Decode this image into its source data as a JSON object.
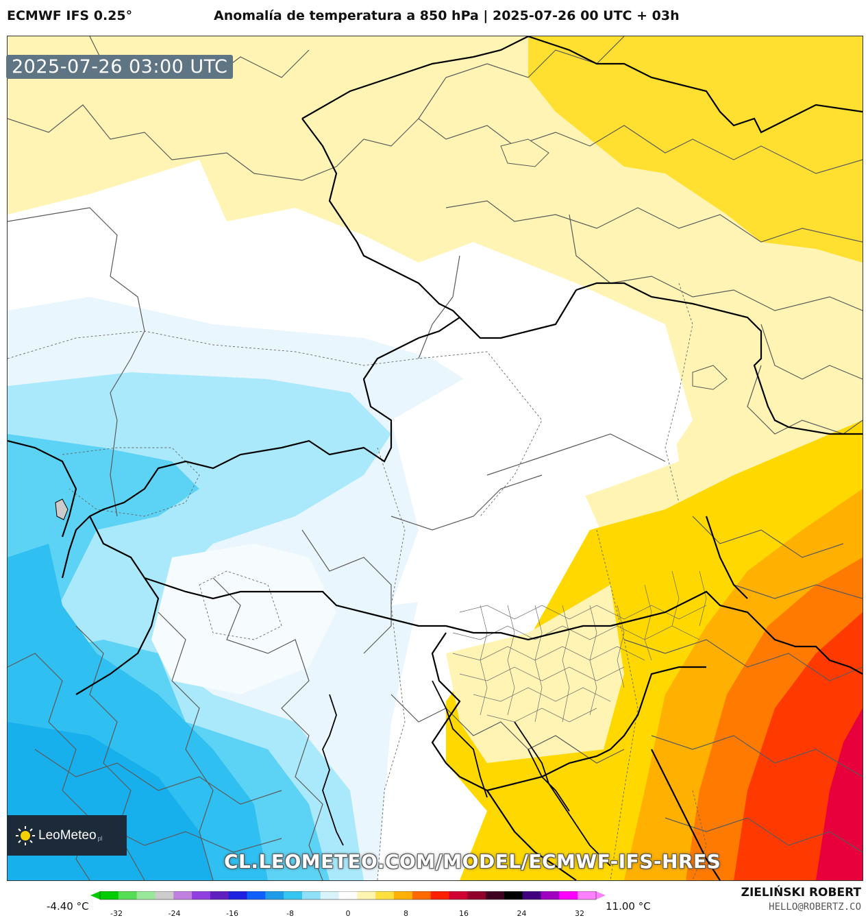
{
  "header": {
    "model": "ECMWF IFS 0.25°",
    "title": "Anomalía de temperatura a 850 hPa | 2025-07-26 00 UTC + 03h"
  },
  "map": {
    "timestamp": "2025-07-26 03:00 UTC",
    "watermark": "CL.LEOMETEO.COM/MODEL/ECMWF-IFS-HRES",
    "logo": {
      "name": "LeoMeteo",
      "suffix": "pl",
      "icon": "sun-icon"
    }
  },
  "legend": {
    "min_label": "-4.40 °C",
    "max_label": "11.00 °C",
    "ticks": [
      "-32",
      "-24",
      "-16",
      "-8",
      "0",
      "8",
      "16",
      "24",
      "32"
    ],
    "colors": [
      "#00cc00",
      "#55dd55",
      "#99e899",
      "#cccccc",
      "#c080e0",
      "#9040e0",
      "#6020c0",
      "#2020e0",
      "#1060ff",
      "#1e9ce8",
      "#35c6f2",
      "#8fe0f8",
      "#d9f3fd",
      "#ffffff",
      "#fff4b0",
      "#ffe040",
      "#ffb000",
      "#ff6a00",
      "#ff2000",
      "#d00030",
      "#90002a",
      "#400020",
      "#000000",
      "#400080",
      "#a000c0",
      "#ff00ff",
      "#ff80ff"
    ]
  },
  "footer": {
    "author": "ZIELIŃSKI ROBERT",
    "email": "HELLO@ROBERTZ.CO"
  }
}
